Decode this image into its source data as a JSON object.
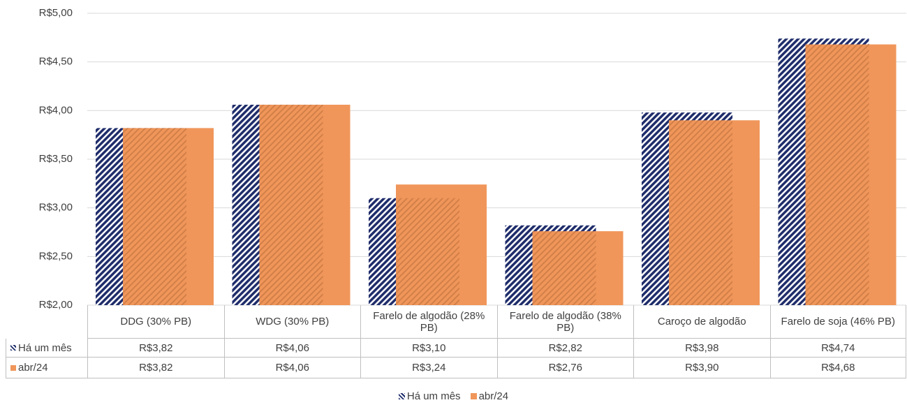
{
  "chart_data": {
    "type": "bar",
    "categories": [
      "DDG (30% PB)",
      "WDG (30% PB)",
      "Farelo de algodão (28% PB)",
      "Farelo de algodão (38% PB)",
      "Caroço de algodão",
      "Farelo de soja (46% PB)"
    ],
    "series": [
      {
        "name": "Há um mês",
        "color": "#1f2d6b",
        "values": [
          3.82,
          4.06,
          3.1,
          2.82,
          3.98,
          4.74
        ],
        "value_labels": [
          "R$3,82",
          "R$4,06",
          "R$3,10",
          "R$2,82",
          "R$3,98",
          "R$4,74"
        ]
      },
      {
        "name": "abr/24",
        "color": "#f0965a",
        "values": [
          3.82,
          4.06,
          3.24,
          2.76,
          3.9,
          4.68
        ],
        "value_labels": [
          "R$3,82",
          "R$4,06",
          "R$3,24",
          "R$2,76",
          "R$3,90",
          "R$4,68"
        ]
      }
    ],
    "ylim": [
      2,
      5
    ],
    "yticks": [
      {
        "value": 2,
        "label": "R$2,00"
      },
      {
        "value": 2.5,
        "label": "R$2,50"
      },
      {
        "value": 3,
        "label": "R$3,00"
      },
      {
        "value": 3.5,
        "label": "R$3,50"
      },
      {
        "value": 4,
        "label": "R$4,00"
      },
      {
        "value": 4.5,
        "label": "R$4,50"
      },
      {
        "value": 5,
        "label": "R$5,00"
      }
    ],
    "grid": true,
    "legend": "bottom"
  }
}
